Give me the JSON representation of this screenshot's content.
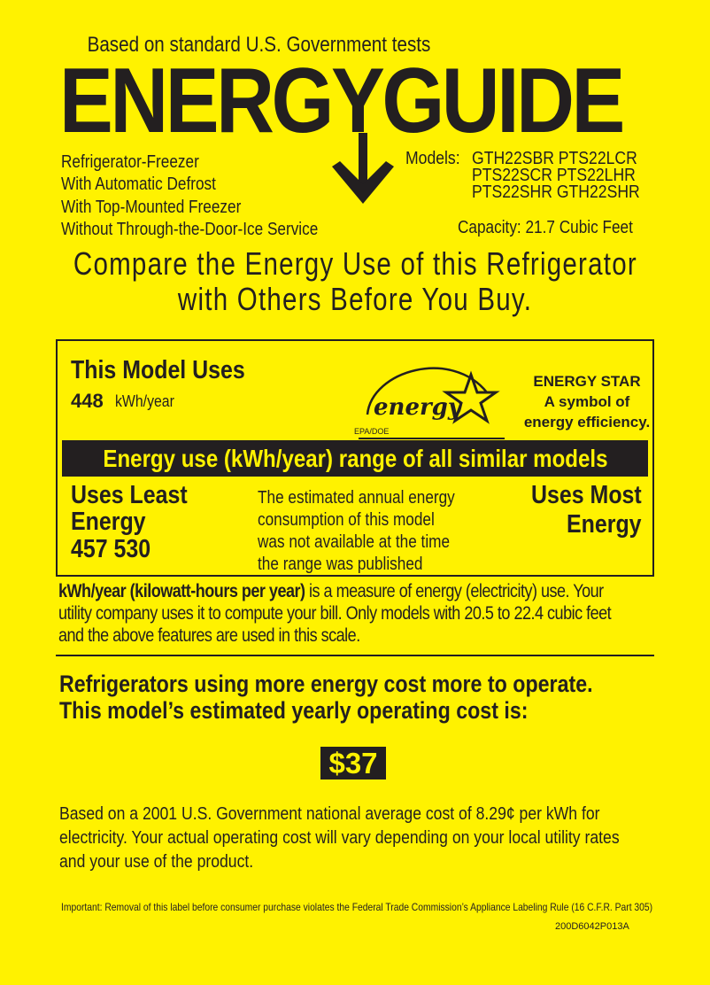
{
  "header": {
    "tests_note": "Based on standard U.S. Government tests",
    "logo_text": "ENERGYGUIDE"
  },
  "product": {
    "features": [
      "Refrigerator-Freezer",
      "With Automatic Defrost",
      "With Top-Mounted Freezer",
      "Without Through-the-Door-Ice Service"
    ],
    "models_label": "Models:",
    "models": [
      "GTH22SBR PTS22LCR",
      "PTS22SCR PTS22LHR",
      "PTS22SHR GTH22SHR"
    ],
    "capacity": "Capacity: 21.7 Cubic Feet"
  },
  "compare": [
    "Compare the Energy Use of this Refrigerator",
    "with Others Before You Buy."
  ],
  "usage": {
    "title": "This Model Uses",
    "value": "448",
    "unit": "kWh/year",
    "energy_star_logo_text": "energy",
    "energy_star_small": "EPA/DOE",
    "energy_star_lines": [
      "ENERGY STAR",
      "A symbol of",
      "energy efficiency."
    ],
    "range_banner": "Energy use (kWh/year) range of all similar models",
    "least_lines": [
      "Uses Least",
      "Energy"
    ],
    "range_values": "457 530",
    "note_lines": [
      "The estimated annual energy",
      "consumption of this model",
      "was not available at the time",
      "the range was published"
    ],
    "most_lines": [
      "Uses Most",
      "Energy"
    ]
  },
  "explanation": {
    "bold": "kWh/year (kilowatt-hours per year)",
    "rest": " is a measure of energy (electricity) use. Your utility company uses it to compute your bill. Only models with 20.5 to 22.4 cubic feet and the above features are used in this scale."
  },
  "cost": {
    "heading_lines": [
      "Refrigerators using more energy cost more to operate.",
      "This model’s estimated yearly operating cost is:"
    ],
    "value": "$37",
    "basis_lines": [
      "Based on a 2001 U.S. Government national average cost of 8.29¢ per kWh for",
      "electricity. Your actual operating cost will vary depending on your local utility rates",
      "and your use of the product."
    ]
  },
  "footer": {
    "important": "Important: Removal of this label before consumer purchase violates the Federal Trade Commission’s Appliance Labeling Rule (16 C.F.R. Part 305)",
    "code": "200D6042P013A"
  },
  "colors": {
    "background": "#fff200",
    "ink": "#231f20"
  }
}
